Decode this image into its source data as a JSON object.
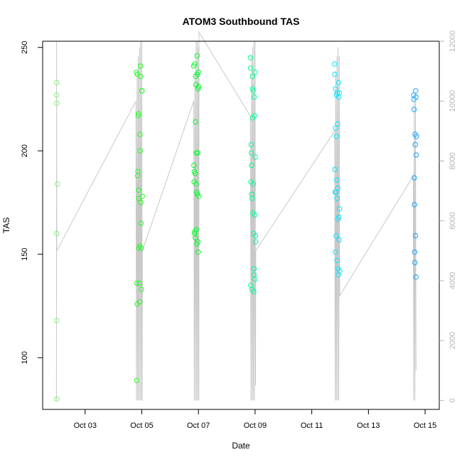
{
  "chart_data": {
    "type": "scatter",
    "title": "ATOM3 Southbound TAS",
    "xlabel": "Date",
    "ylabel": "TAS",
    "x_ticks": [
      "Oct 03",
      "Oct 05",
      "Oct 07",
      "Oct 09",
      "Oct 11",
      "Oct 13",
      "Oct 15"
    ],
    "y_ticks": [
      "100",
      "150",
      "200",
      "250"
    ],
    "y2_ticks": [
      "0",
      "2000",
      "4000",
      "6000",
      "8000",
      "10000",
      "12000"
    ],
    "xlim": [
      "2024-10-01T12:00",
      "2024-10-15T12:00"
    ],
    "ylim": [
      75,
      253
    ],
    "y2lim": [
      -300,
      12000
    ],
    "colors": {
      "scatter_gradient": [
        "#90ee90",
        "#00ff00",
        "#00ffff",
        "#1e90ff"
      ],
      "line": "#c8c8c8"
    },
    "series": [
      {
        "type": "scatter",
        "points": [
          {
            "x": "2024-10-01T23:50",
            "y": 233
          },
          {
            "x": "2024-10-01T23:52",
            "y": 227
          },
          {
            "x": "2024-10-01T23:54",
            "y": 223
          },
          {
            "x": "2024-10-01T23:55",
            "y": 160
          },
          {
            "x": "2024-10-01T23:57",
            "y": 118
          },
          {
            "x": "2024-10-01T23:58",
            "y": 80
          },
          {
            "x": "2024-10-02T00:30",
            "y": 184
          },
          {
            "x": "2024-10-04T19:20",
            "y": 238
          },
          {
            "x": "2024-10-04T19:40",
            "y": 89
          },
          {
            "x": "2024-10-04T19:50",
            "y": 136
          },
          {
            "x": "2024-10-04T20:00",
            "y": 126
          },
          {
            "x": "2024-10-04T20:10",
            "y": 237
          },
          {
            "x": "2024-10-04T20:30",
            "y": 188
          },
          {
            "x": "2024-10-04T20:40",
            "y": 190
          },
          {
            "x": "2024-10-04T21:00",
            "y": 217
          },
          {
            "x": "2024-10-04T21:10",
            "y": 218
          },
          {
            "x": "2024-10-04T21:20",
            "y": 181
          },
          {
            "x": "2024-10-04T21:30",
            "y": 177
          },
          {
            "x": "2024-10-04T21:40",
            "y": 153
          },
          {
            "x": "2024-10-04T22:00",
            "y": 136
          },
          {
            "x": "2024-10-04T22:10",
            "y": 127
          },
          {
            "x": "2024-10-04T22:20",
            "y": 154
          },
          {
            "x": "2024-10-04T22:30",
            "y": 208
          },
          {
            "x": "2024-10-04T22:40",
            "y": 200
          },
          {
            "x": "2024-10-04T22:50",
            "y": 241
          },
          {
            "x": "2024-10-04T23:00",
            "y": 236
          },
          {
            "x": "2024-10-04T23:10",
            "y": 175
          },
          {
            "x": "2024-10-04T23:20",
            "y": 165
          },
          {
            "x": "2024-10-04T23:30",
            "y": 153
          },
          {
            "x": "2024-10-04T23:40",
            "y": 133
          },
          {
            "x": "2024-10-05T00:00",
            "y": 229
          },
          {
            "x": "2024-10-05T00:10",
            "y": 229
          },
          {
            "x": "2024-10-05T00:20",
            "y": 178
          },
          {
            "x": "2024-10-06T20:00",
            "y": 241
          },
          {
            "x": "2024-10-06T20:10",
            "y": 193
          },
          {
            "x": "2024-10-06T20:20",
            "y": 185
          },
          {
            "x": "2024-10-06T20:30",
            "y": 190
          },
          {
            "x": "2024-10-06T20:40",
            "y": 160
          },
          {
            "x": "2024-10-06T20:50",
            "y": 242
          },
          {
            "x": "2024-10-06T21:00",
            "y": 161
          },
          {
            "x": "2024-10-06T21:10",
            "y": 189
          },
          {
            "x": "2024-10-06T21:20",
            "y": 158
          },
          {
            "x": "2024-10-06T21:30",
            "y": 214
          },
          {
            "x": "2024-10-06T21:40",
            "y": 236
          },
          {
            "x": "2024-10-06T21:50",
            "y": 232
          },
          {
            "x": "2024-10-06T22:00",
            "y": 184
          },
          {
            "x": "2024-10-06T22:10",
            "y": 162
          },
          {
            "x": "2024-10-06T22:20",
            "y": 199
          },
          {
            "x": "2024-10-06T22:30",
            "y": 180
          },
          {
            "x": "2024-10-06T22:40",
            "y": 155
          },
          {
            "x": "2024-10-06T22:50",
            "y": 246
          },
          {
            "x": "2024-10-06T23:00",
            "y": 237
          },
          {
            "x": "2024-10-06T23:10",
            "y": 179
          },
          {
            "x": "2024-10-06T23:20",
            "y": 199
          },
          {
            "x": "2024-10-06T23:30",
            "y": 156
          },
          {
            "x": "2024-10-06T23:40",
            "y": 230
          },
          {
            "x": "2024-10-06T23:50",
            "y": 151
          },
          {
            "x": "2024-10-07T00:00",
            "y": 238
          },
          {
            "x": "2024-10-07T00:10",
            "y": 231
          },
          {
            "x": "2024-10-07T00:20",
            "y": 178
          },
          {
            "x": "2024-10-08T20:00",
            "y": 245
          },
          {
            "x": "2024-10-08T20:10",
            "y": 240
          },
          {
            "x": "2024-10-08T20:20",
            "y": 135
          },
          {
            "x": "2024-10-08T20:30",
            "y": 185
          },
          {
            "x": "2024-10-08T20:40",
            "y": 203
          },
          {
            "x": "2024-10-08T20:50",
            "y": 199
          },
          {
            "x": "2024-10-08T21:00",
            "y": 193
          },
          {
            "x": "2024-10-08T21:10",
            "y": 179
          },
          {
            "x": "2024-10-08T21:20",
            "y": 133
          },
          {
            "x": "2024-10-08T21:30",
            "y": 177
          },
          {
            "x": "2024-10-08T21:40",
            "y": 236
          },
          {
            "x": "2024-10-08T21:50",
            "y": 230
          },
          {
            "x": "2024-10-08T22:00",
            "y": 216
          },
          {
            "x": "2024-10-08T22:10",
            "y": 170
          },
          {
            "x": "2024-10-08T22:20",
            "y": 229
          },
          {
            "x": "2024-10-08T22:30",
            "y": 184
          },
          {
            "x": "2024-10-08T22:40",
            "y": 160
          },
          {
            "x": "2024-10-08T22:50",
            "y": 132
          },
          {
            "x": "2024-10-08T23:00",
            "y": 140
          },
          {
            "x": "2024-10-08T23:10",
            "y": 143
          },
          {
            "x": "2024-10-08T23:20",
            "y": 226
          },
          {
            "x": "2024-10-08T23:30",
            "y": 217
          },
          {
            "x": "2024-10-08T23:40",
            "y": 169
          },
          {
            "x": "2024-10-08T23:50",
            "y": 138
          },
          {
            "x": "2024-10-09T00:00",
            "y": 238
          },
          {
            "x": "2024-10-09T00:10",
            "y": 197
          },
          {
            "x": "2024-10-09T00:20",
            "y": 159
          },
          {
            "x": "2024-10-09T00:30",
            "y": 156
          },
          {
            "x": "2024-10-11T19:20",
            "y": 242
          },
          {
            "x": "2024-10-11T19:30",
            "y": 237
          },
          {
            "x": "2024-10-11T19:40",
            "y": 191
          },
          {
            "x": "2024-10-11T19:50",
            "y": 180
          },
          {
            "x": "2024-10-11T20:00",
            "y": 151
          },
          {
            "x": "2024-10-11T20:10",
            "y": 230
          },
          {
            "x": "2024-10-11T20:20",
            "y": 211
          },
          {
            "x": "2024-10-11T20:30",
            "y": 180
          },
          {
            "x": "2024-10-11T20:40",
            "y": 159
          },
          {
            "x": "2024-10-11T20:50",
            "y": 227
          },
          {
            "x": "2024-10-11T21:00",
            "y": 207
          },
          {
            "x": "2024-10-11T21:10",
            "y": 186
          },
          {
            "x": "2024-10-11T21:20",
            "y": 177
          },
          {
            "x": "2024-10-11T21:30",
            "y": 147
          },
          {
            "x": "2024-10-11T21:40",
            "y": 228
          },
          {
            "x": "2024-10-11T21:50",
            "y": 213
          },
          {
            "x": "2024-10-11T22:00",
            "y": 182
          },
          {
            "x": "2024-10-11T22:10",
            "y": 167
          },
          {
            "x": "2024-10-11T22:20",
            "y": 143
          },
          {
            "x": "2024-10-11T22:30",
            "y": 140
          },
          {
            "x": "2024-10-11T22:40",
            "y": 233
          },
          {
            "x": "2024-10-11T22:50",
            "y": 226
          },
          {
            "x": "2024-10-11T23:00",
            "y": 168
          },
          {
            "x": "2024-10-11T23:10",
            "y": 157
          },
          {
            "x": "2024-10-11T23:20",
            "y": 228
          },
          {
            "x": "2024-10-11T23:30",
            "y": 172
          },
          {
            "x": "2024-10-11T23:40",
            "y": 142
          },
          {
            "x": "2024-10-14T14:20",
            "y": 227
          },
          {
            "x": "2024-10-14T14:30",
            "y": 225
          },
          {
            "x": "2024-10-14T14:40",
            "y": 220
          },
          {
            "x": "2024-10-14T14:50",
            "y": 187
          },
          {
            "x": "2024-10-14T15:00",
            "y": 174
          },
          {
            "x": "2024-10-14T15:10",
            "y": 151
          },
          {
            "x": "2024-10-14T15:20",
            "y": 146
          },
          {
            "x": "2024-10-14T15:30",
            "y": 208
          },
          {
            "x": "2024-10-14T15:40",
            "y": 203
          },
          {
            "x": "2024-10-14T15:50",
            "y": 159
          },
          {
            "x": "2024-10-14T16:00",
            "y": 229
          },
          {
            "x": "2024-10-14T16:10",
            "y": 226
          },
          {
            "x": "2024-10-14T16:20",
            "y": 139
          },
          {
            "x": "2024-10-14T16:30",
            "y": 198
          },
          {
            "x": "2024-10-14T16:40",
            "y": 207
          }
        ]
      },
      {
        "type": "line",
        "axis": "right",
        "points": [
          {
            "x": "2024-10-01T23:40",
            "y": 0
          },
          {
            "x": "2024-10-01T23:50",
            "y": 12000
          },
          {
            "x": "2024-10-02T00:00",
            "y": 5000
          },
          {
            "x": "2024-10-04T19:00",
            "y": 10000
          },
          {
            "x": "2024-10-04T19:30",
            "y": 0
          },
          {
            "x": "2024-10-04T20:00",
            "y": 11000
          },
          {
            "x": "2024-10-04T20:30",
            "y": 0
          },
          {
            "x": "2024-10-04T21:00",
            "y": 11500
          },
          {
            "x": "2024-10-04T21:30",
            "y": 0
          },
          {
            "x": "2024-10-04T22:00",
            "y": 11800
          },
          {
            "x": "2024-10-04T22:30",
            "y": 0
          },
          {
            "x": "2024-10-04T23:00",
            "y": 12000
          },
          {
            "x": "2024-10-04T23:30",
            "y": 0
          },
          {
            "x": "2024-10-05T00:00",
            "y": 12000
          },
          {
            "x": "2024-10-05T00:20",
            "y": 0
          },
          {
            "x": "2024-10-05T00:30",
            "y": 5000
          },
          {
            "x": "2024-10-06T20:00",
            "y": 10000
          },
          {
            "x": "2024-10-06T20:30",
            "y": 0
          },
          {
            "x": "2024-10-06T21:00",
            "y": 11000
          },
          {
            "x": "2024-10-06T21:30",
            "y": 0
          },
          {
            "x": "2024-10-06T22:00",
            "y": 12000
          },
          {
            "x": "2024-10-06T22:30",
            "y": 0
          },
          {
            "x": "2024-10-06T23:00",
            "y": 12000
          },
          {
            "x": "2024-10-06T23:30",
            "y": 0
          },
          {
            "x": "2024-10-07T00:00",
            "y": 11800
          },
          {
            "x": "2024-10-07T00:20",
            "y": 0
          },
          {
            "x": "2024-10-07T00:30",
            "y": 12300
          },
          {
            "x": "2024-10-08T20:00",
            "y": 9500
          },
          {
            "x": "2024-10-08T20:30",
            "y": 0
          },
          {
            "x": "2024-10-08T21:00",
            "y": 11500
          },
          {
            "x": "2024-10-08T21:30",
            "y": 0
          },
          {
            "x": "2024-10-08T22:00",
            "y": 11800
          },
          {
            "x": "2024-10-08T22:30",
            "y": 0
          },
          {
            "x": "2024-10-08T23:00",
            "y": 12000
          },
          {
            "x": "2024-10-08T23:30",
            "y": 0
          },
          {
            "x": "2024-10-09T00:00",
            "y": 12000
          },
          {
            "x": "2024-10-09T00:20",
            "y": 500
          },
          {
            "x": "2024-10-09T00:30",
            "y": 5000
          },
          {
            "x": "2024-10-11T19:20",
            "y": 9000
          },
          {
            "x": "2024-10-11T19:50",
            "y": 0
          },
          {
            "x": "2024-10-11T20:20",
            "y": 11000
          },
          {
            "x": "2024-10-11T20:50",
            "y": 0
          },
          {
            "x": "2024-10-11T21:20",
            "y": 11500
          },
          {
            "x": "2024-10-11T21:50",
            "y": 0
          },
          {
            "x": "2024-10-11T22:20",
            "y": 11800
          },
          {
            "x": "2024-10-11T22:50",
            "y": 0
          },
          {
            "x": "2024-10-11T23:20",
            "y": 11500
          },
          {
            "x": "2024-10-11T23:40",
            "y": 3500
          },
          {
            "x": "2024-10-14T14:00",
            "y": 7500
          },
          {
            "x": "2024-10-14T14:20",
            "y": 0
          },
          {
            "x": "2024-10-14T14:50",
            "y": 10000
          },
          {
            "x": "2024-10-14T15:20",
            "y": 0
          },
          {
            "x": "2024-10-14T15:50",
            "y": 10000
          },
          {
            "x": "2024-10-14T16:20",
            "y": 1000
          }
        ]
      }
    ]
  }
}
